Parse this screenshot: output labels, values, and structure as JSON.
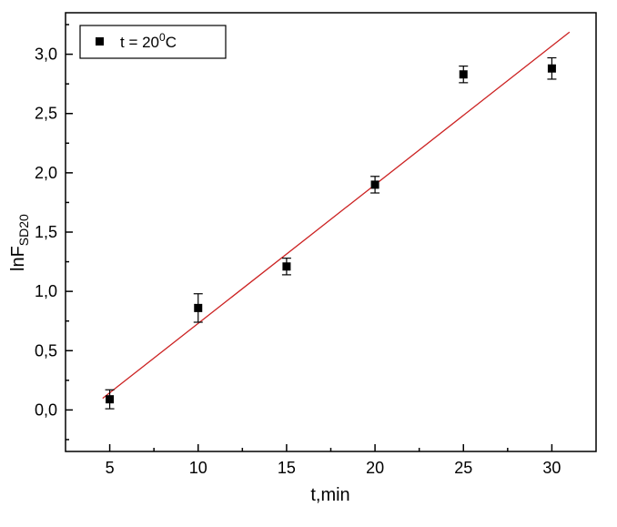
{
  "chart_data": {
    "type": "scatter",
    "title": "",
    "xlabel": "t,min",
    "ylabel_main": "lnF",
    "ylabel_sub": "SD20",
    "x": [
      5,
      10,
      15,
      20,
      25,
      30
    ],
    "y": [
      0.09,
      0.86,
      1.21,
      1.9,
      2.83,
      2.88
    ],
    "yerr": [
      0.08,
      0.12,
      0.07,
      0.07,
      0.07,
      0.09
    ],
    "xlim": [
      2.5,
      32.5
    ],
    "ylim": [
      -0.35,
      3.35
    ],
    "x_ticks": [
      5,
      10,
      15,
      20,
      25,
      30
    ],
    "x_tick_labels": [
      "5",
      "10",
      "15",
      "20",
      "25",
      "30"
    ],
    "x_minor_ticks": [
      7.5,
      12.5,
      17.5,
      22.5,
      27.5
    ],
    "y_ticks": [
      0,
      0.5,
      1,
      1.5,
      2,
      2.5,
      3
    ],
    "y_tick_labels": [
      "0,0",
      "0,5",
      "1,0",
      "1,5",
      "2,0",
      "2,5",
      "3,0"
    ],
    "y_minor_ticks": [
      -0.25,
      0.25,
      0.75,
      1.25,
      1.75,
      2.25,
      2.75,
      3.25
    ],
    "fit_line": {
      "slope": 0.117,
      "intercept": -0.44,
      "x_start": 4.6,
      "x_end": 31.0,
      "color": "#cc2222"
    },
    "marker_color": "#000000",
    "axis_color": "#000000",
    "legend": {
      "prefix": "t = 20",
      "sup": "0",
      "suffix": "C"
    },
    "grid": false,
    "legend_position": "top-left"
  }
}
